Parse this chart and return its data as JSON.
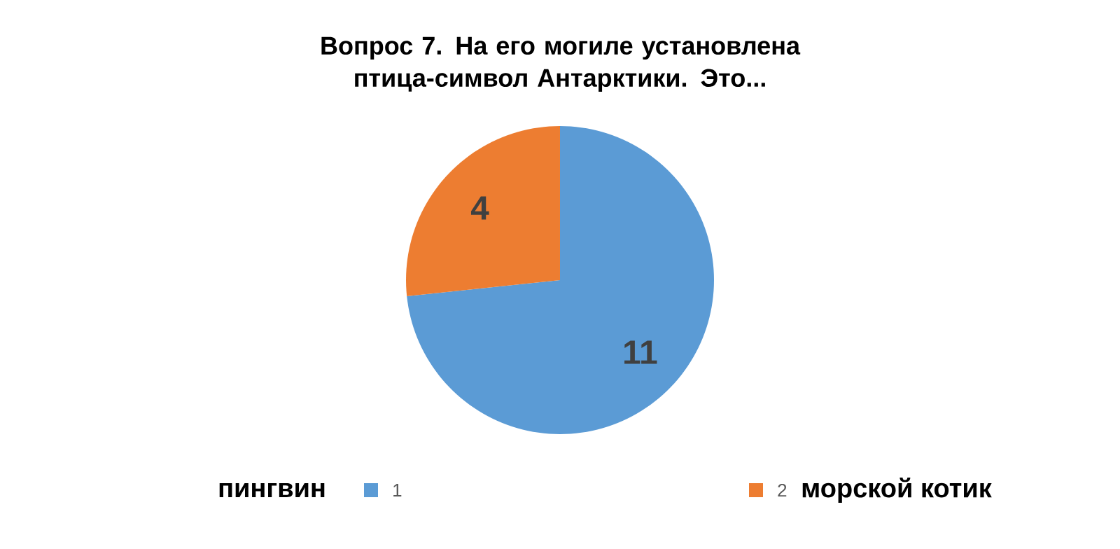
{
  "chart_data": {
    "type": "pie",
    "title": "Вопрос 7. На его могиле установлена птица-символ Антарктики. Это...",
    "categories": [
      "1",
      "2"
    ],
    "values": [
      11,
      4
    ],
    "colors": [
      "#5b9bd5",
      "#ed7d31"
    ],
    "data_labels": true,
    "legend": "bottom",
    "annotations": [
      "пингвин",
      "морской котик"
    ]
  }
}
